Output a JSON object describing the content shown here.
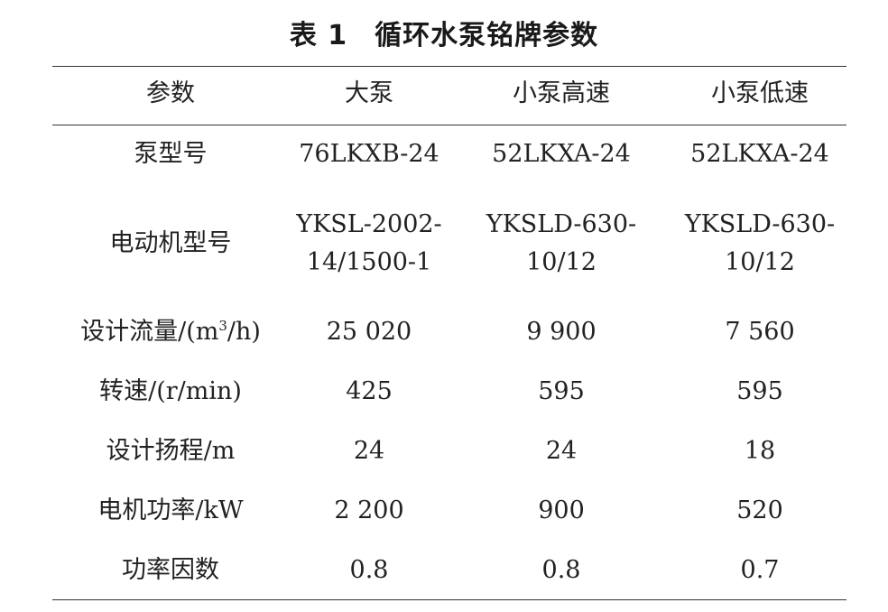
{
  "caption": {
    "number": "表 1",
    "title": "循环水泵铭牌参数"
  },
  "header": [
    "参数",
    "大泵",
    "小泵高速",
    "小泵低速"
  ],
  "rows": [
    {
      "label": "泵型号",
      "values": [
        "76LKXB-24",
        "52LKXA-24",
        "52LKXA-24"
      ]
    },
    {
      "label": "电动机型号",
      "values": [
        {
          "line1": "YKSL-2002-",
          "line2": "14/1500-1"
        },
        {
          "line1": "YKSLD-630-",
          "line2": "10/12"
        },
        {
          "line1": "YKSLD-630-",
          "line2": "10/12"
        }
      ]
    },
    {
      "label_pre": "设计流量/(m",
      "label_sup": "3",
      "label_post": "/h)",
      "values": [
        "25 020",
        "9 900",
        "7 560"
      ]
    },
    {
      "label": "转速/(r/min)",
      "values": [
        "425",
        "595",
        "595"
      ]
    },
    {
      "label": "设计扬程/m",
      "values": [
        "24",
        "24",
        "18"
      ]
    },
    {
      "label": "电机功率/kW",
      "values": [
        "2 200",
        "900",
        "520"
      ]
    },
    {
      "label": "功率因数",
      "values": [
        "0.8",
        "0.8",
        "0.7"
      ]
    }
  ]
}
